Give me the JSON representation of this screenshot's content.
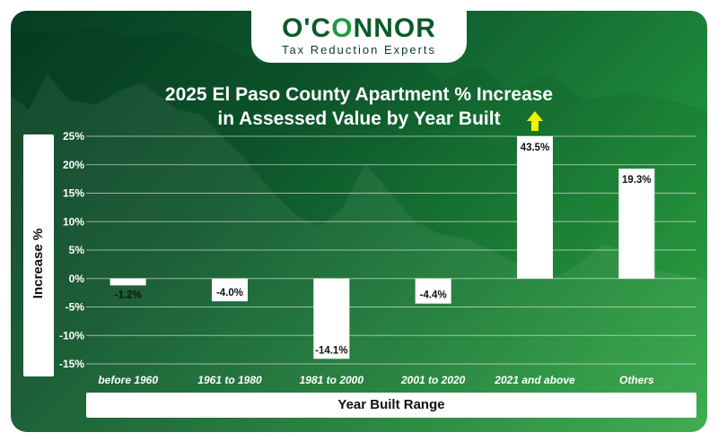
{
  "brand": {
    "name_part1": "O'C",
    "name_part2": "O",
    "name_part3": "NNOR",
    "tagline": "Tax Reduction Experts"
  },
  "colors": {
    "bar": "#ffffff",
    "arrow": "#f2f200",
    "brand_green": "#1f9a45"
  },
  "chart_data": {
    "type": "bar",
    "title_line1": "2025 El Paso County Apartment % Increase",
    "title_line2": "in Assessed Value by Year Built",
    "xlabel": "Year Built Range",
    "ylabel": "Increase %",
    "categories": [
      "before 1960",
      "1961 to 1980",
      "1981 to 2000",
      "2001 to 2020",
      "2021 and above",
      "Others"
    ],
    "values": [
      -1.2,
      -4.0,
      -14.1,
      -4.4,
      43.5,
      19.3
    ],
    "value_labels": [
      "-1.2%",
      "-4.0%",
      "-14.1%",
      "-4.4%",
      "43.5%",
      "19.3%"
    ],
    "ylim": [
      -15,
      25
    ],
    "yticks": [
      25,
      20,
      15,
      10,
      5,
      0,
      -5,
      -10,
      -15
    ],
    "ytick_labels": [
      "25%",
      "20%",
      "15%",
      "10%",
      "5%",
      "0%",
      "-5%",
      "-10%",
      "-15%"
    ],
    "grid": true,
    "legend": "none",
    "annotation": "up-arrow above 2021 and above bar (value exceeds axis)"
  }
}
